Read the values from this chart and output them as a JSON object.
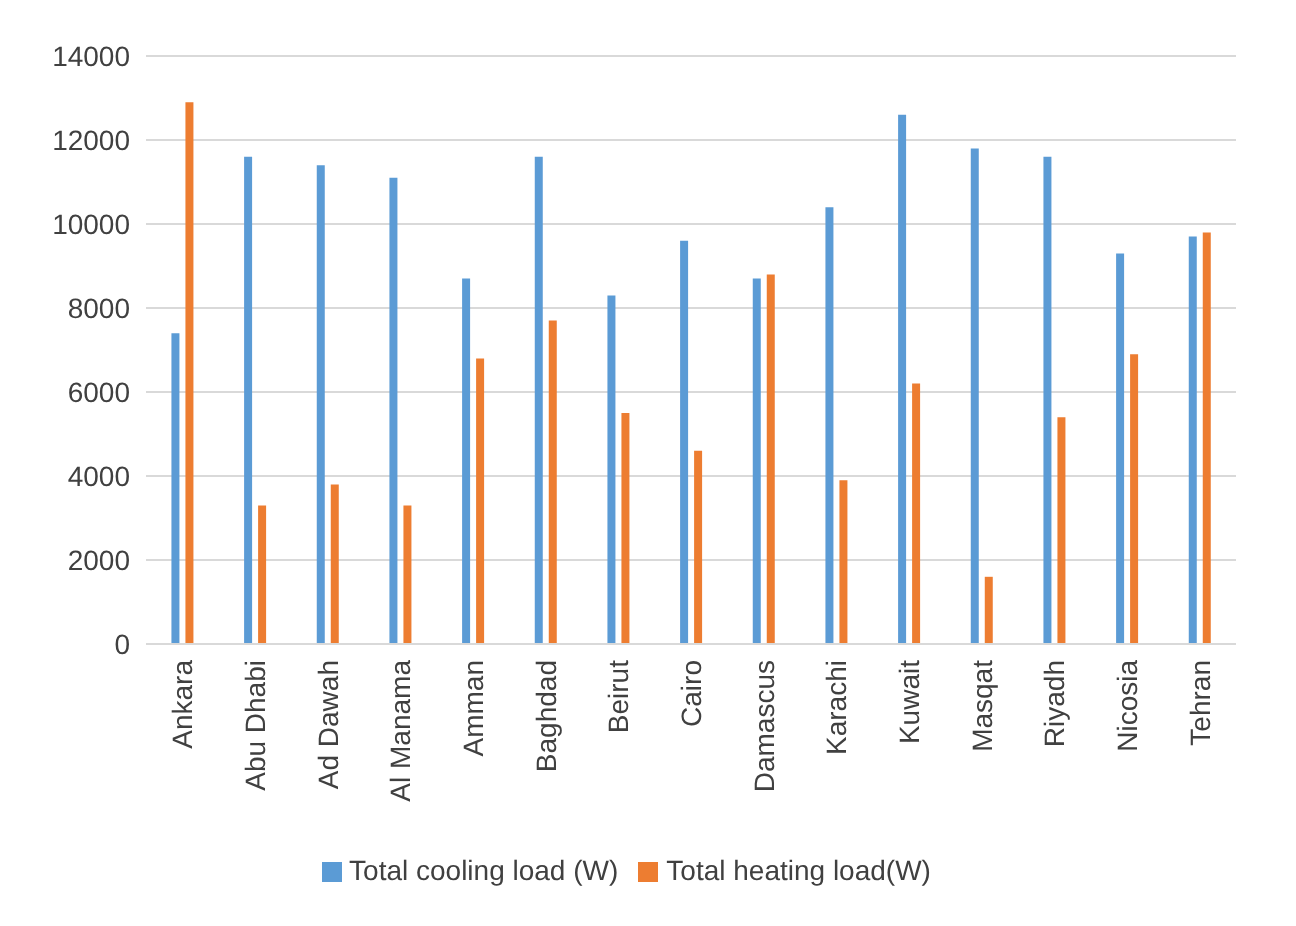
{
  "chart_data": {
    "type": "bar",
    "categories": [
      "Ankara",
      "Abu Dhabi",
      "Ad Dawah",
      "Al Manama",
      "Amman",
      "Baghdad",
      "Beirut",
      "Cairo",
      "Damascus",
      "Karachi",
      "Kuwait",
      "Masqat",
      "Riyadh",
      "Nicosia",
      "Tehran"
    ],
    "series": [
      {
        "name": "Total cooling load (W)",
        "color": "#5b9bd5",
        "values": [
          7400,
          11600,
          11400,
          11100,
          8700,
          11600,
          8300,
          9600,
          8700,
          10400,
          12600,
          11800,
          11600,
          9300,
          9700
        ]
      },
      {
        "name": "Total heating load(W)",
        "color": "#ed7d31",
        "values": [
          12900,
          3300,
          3800,
          3300,
          6800,
          7700,
          5500,
          4600,
          8800,
          3900,
          6200,
          1600,
          5400,
          6900,
          9800
        ]
      }
    ],
    "ylim": [
      0,
      14000
    ],
    "yticks": [
      0,
      2000,
      4000,
      6000,
      8000,
      10000,
      12000,
      14000
    ],
    "grid": "y",
    "legend": "bottom"
  }
}
